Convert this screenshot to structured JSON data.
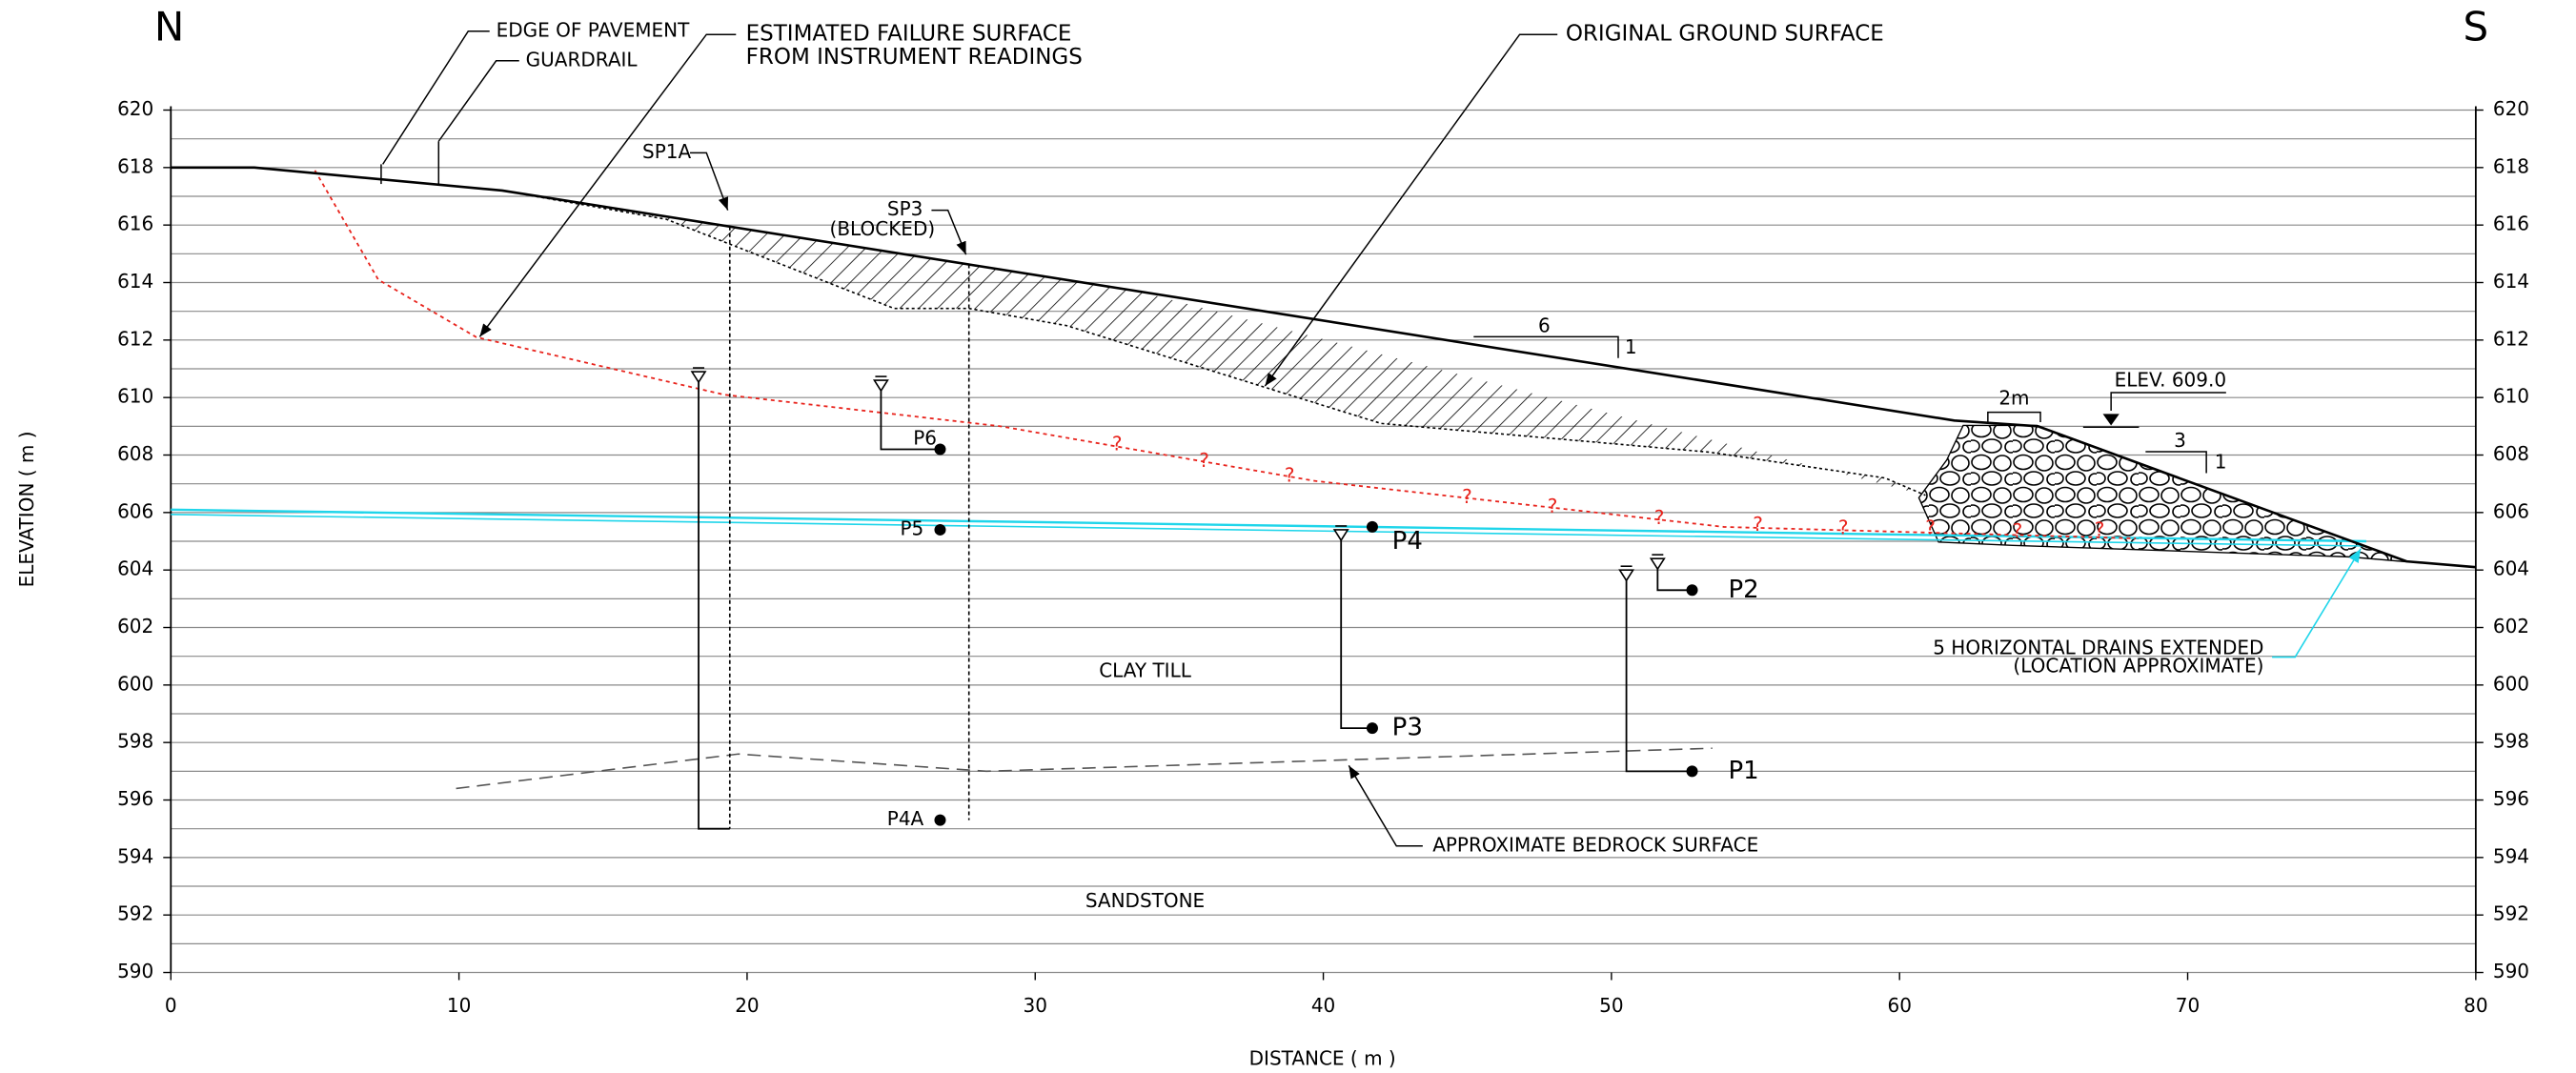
{
  "chart_data": {
    "type": "section",
    "north": "N",
    "south": "S",
    "x_label": "DISTANCE ( m )",
    "y_label": "ELEVATION ( m )",
    "xlim": [
      0,
      80
    ],
    "xticks": [
      0,
      10,
      20,
      30,
      40,
      50,
      60,
      70,
      80
    ],
    "ylim": [
      590,
      620
    ],
    "yticks": [
      590,
      592,
      594,
      596,
      598,
      600,
      602,
      604,
      606,
      608,
      610,
      612,
      614,
      616,
      618,
      620
    ],
    "grid": true,
    "ground_surface": {
      "x": [
        0,
        2.9,
        11.5,
        61.9,
        64.8,
        77.6,
        80
      ],
      "values": [
        618,
        618,
        617.2,
        609.2,
        609,
        604.3,
        604.1
      ],
      "color": "#000000"
    },
    "original_ground": {
      "label": "ORIGINAL GROUND SURFACE",
      "x": [
        11.5,
        17.2,
        25.1,
        27.7,
        31.1,
        42,
        53.4,
        59.5,
        60.9
      ],
      "values": [
        617.2,
        616.2,
        613.1,
        613.1,
        612.5,
        609.1,
        608.1,
        607.2,
        606.6
      ]
    },
    "failure_surface": {
      "label": [
        "ESTIMATED FAILURE SURFACE",
        "FROM INSTRUMENT READINGS"
      ],
      "x": [
        5,
        7.2,
        10.6,
        19.2,
        28.8,
        39.7,
        53.9,
        68.2
      ],
      "values": [
        617.9,
        614.1,
        612.1,
        610.1,
        609,
        607.1,
        605.5,
        605.1
      ],
      "color": "#e8231c",
      "uncertain_mark": "?"
    },
    "water_table": {
      "x": [
        0,
        76.2
      ],
      "values": [
        606.1,
        605
      ],
      "color": "#1fd5ea"
    },
    "bedrock_surface": {
      "label": "APPROXIMATE BEDROCK SURFACE",
      "x": [
        9.9,
        19.7,
        28.3,
        53.5
      ],
      "values": [
        596.4,
        597.6,
        597,
        597.8
      ],
      "color": "#555555"
    },
    "strata": [
      "CLAY TILL",
      "SANDSTONE"
    ],
    "standpipes": [
      {
        "name": "SP1A",
        "distance": 19.4,
        "bottom": 595,
        "water_level": 610.7
      },
      {
        "name": "SP3",
        "note": "(BLOCKED)",
        "distance": 27.7,
        "bottom": 595.3
      }
    ],
    "piezometers": [
      {
        "name": "P6",
        "distance": 26.7,
        "elevation": 608.2,
        "water_level": 610.4
      },
      {
        "name": "P5",
        "distance": 26.7,
        "elevation": 605.4
      },
      {
        "name": "P4",
        "distance": 41.7,
        "elevation": 605.5
      },
      {
        "name": "P3",
        "distance": 41.7,
        "elevation": 598.5,
        "water_level": 605.2
      },
      {
        "name": "P2",
        "distance": 52.8,
        "elevation": 603.3,
        "water_level": 604.2
      },
      {
        "name": "P1",
        "distance": 52.8,
        "elevation": 597,
        "water_level": 603.8
      },
      {
        "name": "P4A",
        "distance": 26.7,
        "elevation": 595.3
      }
    ],
    "labels": {
      "edge_of_pavement": "EDGE OF PAVEMENT",
      "guardrail": "GUARDRAIL",
      "drains": [
        "5 HORIZONTAL DRAINS EXTENDED",
        "(LOCATION APPROXIMATE)"
      ],
      "elevation": "ELEV. 609.0",
      "berm_width": "2m",
      "slope_upper": [
        "6",
        "1"
      ],
      "slope_lower": [
        "3",
        "1"
      ]
    }
  }
}
